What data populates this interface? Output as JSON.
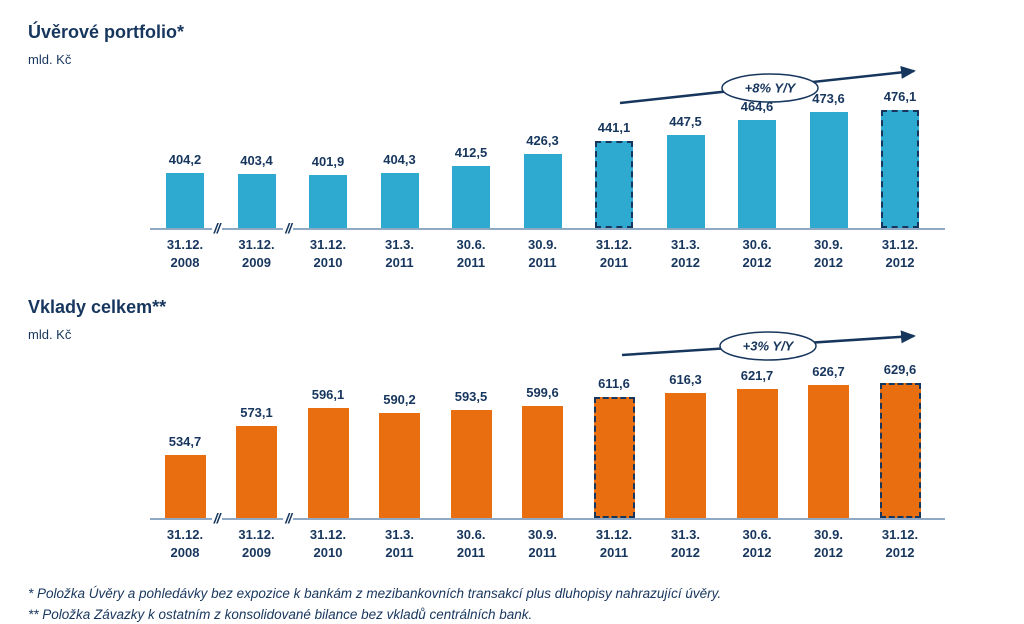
{
  "colors": {
    "navy": "#17365D",
    "axis_line": "#8FA9C4",
    "background": "#FFFFFF",
    "loans_bar": "#2EA9CF",
    "deposits_bar": "#E96E0F"
  },
  "chart_data": [
    {
      "type": "bar",
      "title": "Úvěrové portfolio*",
      "unit": "mld. Kč",
      "bar_color": "#2EA9CF",
      "categories": [
        [
          "31.12.",
          "2008"
        ],
        [
          "31.12.",
          "2009"
        ],
        [
          "31.12.",
          "2010"
        ],
        [
          "31.3.",
          "2011"
        ],
        [
          "30.6.",
          "2011"
        ],
        [
          "30.9.",
          "2011"
        ],
        [
          "31.12.",
          "2011"
        ],
        [
          "31.3.",
          "2012"
        ],
        [
          "30.6.",
          "2012"
        ],
        [
          "30.9.",
          "2012"
        ],
        [
          "31.12.",
          "2012"
        ]
      ],
      "values": [
        404.2,
        403.4,
        401.9,
        404.3,
        412.5,
        426.3,
        441.1,
        447.5,
        464.6,
        473.6,
        476.1
      ],
      "value_labels": [
        "404,2",
        "403,4",
        "401,9",
        "404,3",
        "412,5",
        "426,3",
        "441,1",
        "447,5",
        "464,6",
        "473,6",
        "476,1"
      ],
      "dashed_indices": [
        6,
        10
      ],
      "axis_breaks_after": [
        0,
        1
      ],
      "annotation": "+8% Y/Y",
      "axis_truncated": true,
      "grid": false,
      "legend": false
    },
    {
      "type": "bar",
      "title": "Vklady celkem**",
      "unit": "mld. Kč",
      "bar_color": "#E96E0F",
      "categories": [
        [
          "31.12.",
          "2008"
        ],
        [
          "31.12.",
          "2009"
        ],
        [
          "31.12.",
          "2010"
        ],
        [
          "31.3.",
          "2011"
        ],
        [
          "30.6.",
          "2011"
        ],
        [
          "30.9.",
          "2011"
        ],
        [
          "31.12.",
          "2011"
        ],
        [
          "31.3.",
          "2012"
        ],
        [
          "30.6.",
          "2012"
        ],
        [
          "30.9.",
          "2012"
        ],
        [
          "31.12.",
          "2012"
        ]
      ],
      "values": [
        534.7,
        573.1,
        596.1,
        590.2,
        593.5,
        599.6,
        611.6,
        616.3,
        621.7,
        626.7,
        629.6
      ],
      "value_labels": [
        "534,7",
        "573,1",
        "596,1",
        "590,2",
        "593,5",
        "599,6",
        "611,6",
        "616,3",
        "621,7",
        "626,7",
        "629,6"
      ],
      "dashed_indices": [
        6,
        10
      ],
      "axis_breaks_after": [
        0,
        1
      ],
      "annotation": "+3% Y/Y",
      "axis_truncated": true,
      "grid": false,
      "legend": false
    }
  ],
  "footnotes": [
    "* Položka Úvěry a pohledávky bez expozice k bankám z mezibankovních transakcí plus dluhopisy nahrazující úvěry.",
    "** Položka Závazky k ostatním z konsolidované bilance bez vkladů centrálních bank."
  ]
}
